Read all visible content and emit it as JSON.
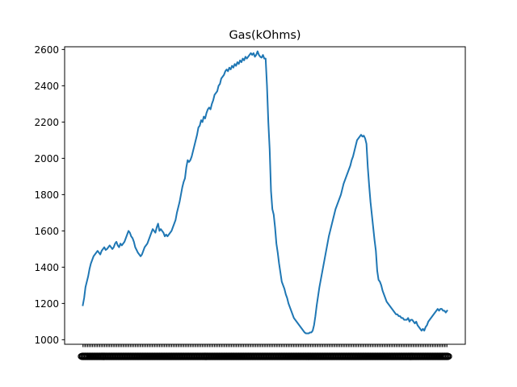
{
  "chart_data": {
    "type": "line",
    "title": "Gas(kOhms)",
    "xlabel": "",
    "ylabel": "",
    "ylim": [
      975,
      2615
    ],
    "yticks": [
      1000,
      1200,
      1400,
      1600,
      1800,
      2000,
      2200,
      2400,
      2600
    ],
    "x_tick_labels_illegible": true,
    "x_tick_count": 300,
    "grid": false,
    "line_color": "#1f77b4",
    "series": [
      {
        "values": [
          1190,
          1230,
          1290,
          1320,
          1350,
          1390,
          1420,
          1440,
          1460,
          1470,
          1480,
          1490,
          1480,
          1470,
          1490,
          1500,
          1510,
          1495,
          1500,
          1510,
          1520,
          1510,
          1500,
          1510,
          1530,
          1540,
          1520,
          1510,
          1530,
          1520,
          1530,
          1540,
          1560,
          1580,
          1600,
          1590,
          1570,
          1560,
          1540,
          1510,
          1495,
          1480,
          1470,
          1460,
          1470,
          1490,
          1510,
          1520,
          1530,
          1550,
          1570,
          1590,
          1610,
          1600,
          1590,
          1620,
          1640,
          1600,
          1610,
          1600,
          1590,
          1570,
          1580,
          1570,
          1580,
          1590,
          1600,
          1620,
          1640,
          1660,
          1700,
          1730,
          1760,
          1800,
          1840,
          1870,
          1890,
          1950,
          1990,
          1980,
          1990,
          2010,
          2040,
          2070,
          2100,
          2130,
          2170,
          2180,
          2210,
          2200,
          2230,
          2220,
          2250,
          2270,
          2280,
          2270,
          2300,
          2320,
          2350,
          2360,
          2370,
          2400,
          2410,
          2440,
          2450,
          2460,
          2480,
          2490,
          2480,
          2500,
          2490,
          2510,
          2500,
          2520,
          2510,
          2530,
          2520,
          2540,
          2530,
          2550,
          2540,
          2560,
          2550,
          2560,
          2570,
          2580,
          2570,
          2580,
          2560,
          2570,
          2590,
          2570,
          2560,
          2555,
          2570,
          2550,
          2550,
          2400,
          2200,
          2050,
          1820,
          1720,
          1690,
          1620,
          1530,
          1480,
          1420,
          1370,
          1320,
          1300,
          1280,
          1250,
          1230,
          1200,
          1180,
          1160,
          1140,
          1120,
          1110,
          1100,
          1090,
          1080,
          1070,
          1060,
          1050,
          1040,
          1035,
          1035,
          1035,
          1040,
          1040,
          1050,
          1080,
          1130,
          1190,
          1240,
          1290,
          1330,
          1370,
          1410,
          1450,
          1490,
          1530,
          1570,
          1600,
          1630,
          1660,
          1690,
          1720,
          1740,
          1760,
          1780,
          1800,
          1830,
          1860,
          1880,
          1900,
          1920,
          1940,
          1960,
          1990,
          2010,
          2040,
          2070,
          2100,
          2110,
          2120,
          2130,
          2120,
          2125,
          2110,
          2080,
          1950,
          1850,
          1760,
          1690,
          1620,
          1550,
          1490,
          1380,
          1330,
          1320,
          1300,
          1270,
          1250,
          1230,
          1210,
          1200,
          1190,
          1180,
          1170,
          1160,
          1150,
          1140,
          1140,
          1130,
          1130,
          1120,
          1120,
          1110,
          1110,
          1110,
          1120,
          1100,
          1110,
          1110,
          1100,
          1090,
          1100,
          1080,
          1070,
          1060,
          1050,
          1060,
          1050,
          1070,
          1080,
          1100,
          1110,
          1120,
          1130,
          1140,
          1150,
          1160,
          1170,
          1160,
          1170,
          1170,
          1160,
          1160,
          1150,
          1160
        ]
      }
    ]
  }
}
